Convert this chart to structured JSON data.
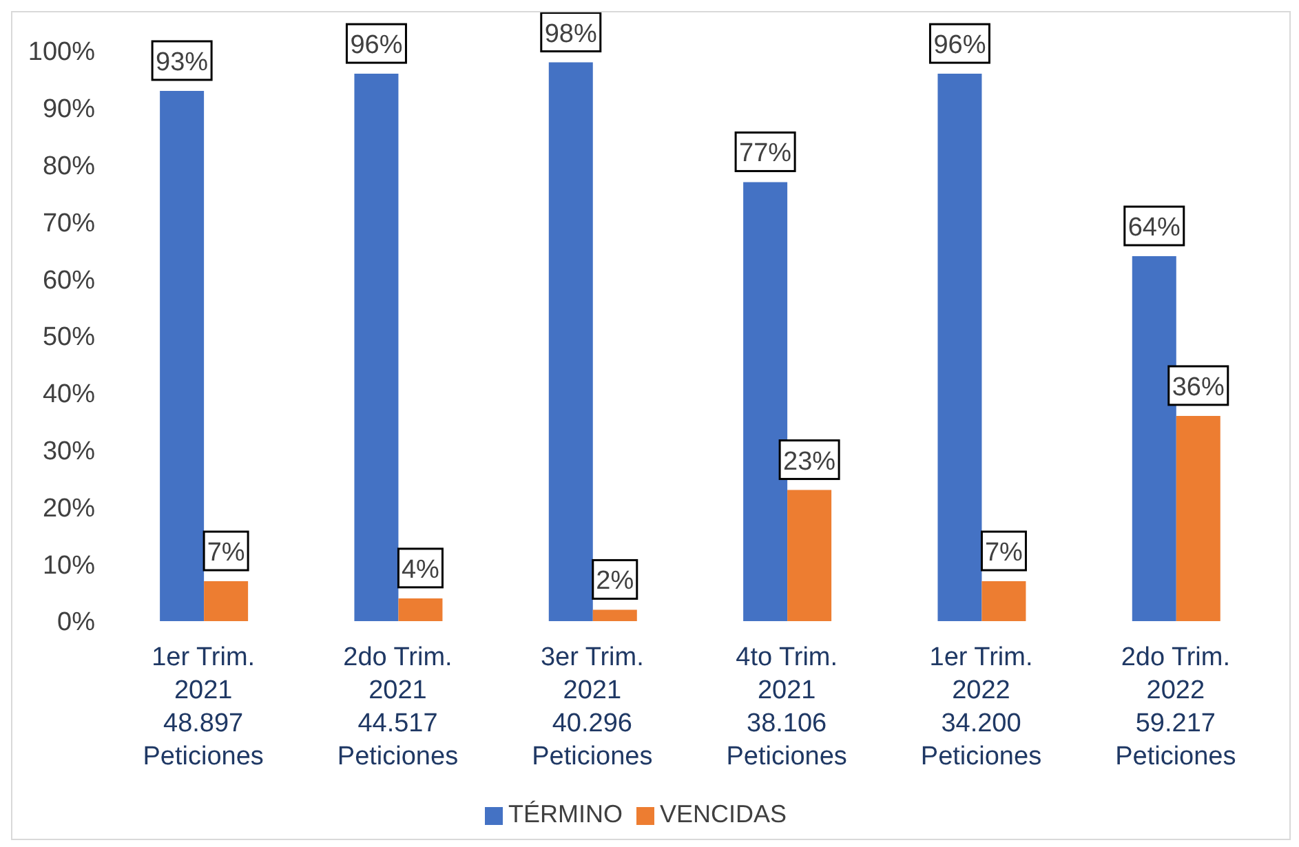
{
  "chart_data": {
    "type": "bar",
    "categories": [
      "1er Trim.\n2021\n48.897\nPeticiones",
      "2do Trim.\n2021\n44.517\nPeticiones",
      "3er Trim.\n2021\n40.296\nPeticiones",
      "4to Trim.\n2021\n38.106\nPeticiones",
      "1er Trim.\n2022\n34.200\nPeticiones",
      "2do Trim.\n2022\n59.217\nPeticiones"
    ],
    "series": [
      {
        "name": "TÉRMINO",
        "color": "#4472c4",
        "values": [
          93,
          96,
          98,
          77,
          96,
          64
        ],
        "value_labels": [
          "93%",
          "96%",
          "98%",
          "77%",
          "96%",
          "64%"
        ]
      },
      {
        "name": "VENCIDAS",
        "color": "#ed7d31",
        "values": [
          7,
          4,
          2,
          23,
          7,
          36
        ],
        "value_labels": [
          "7%",
          "4%",
          "2%",
          "23%",
          "7%",
          "36%"
        ]
      }
    ],
    "ylim": [
      0,
      100
    ],
    "yticks": [
      {
        "value": 0,
        "label": "0%"
      },
      {
        "value": 10,
        "label": "10%"
      },
      {
        "value": 20,
        "label": "20%"
      },
      {
        "value": 30,
        "label": "30%"
      },
      {
        "value": 40,
        "label": "40%"
      },
      {
        "value": 50,
        "label": "50%"
      },
      {
        "value": 60,
        "label": "60%"
      },
      {
        "value": 70,
        "label": "70%"
      },
      {
        "value": 80,
        "label": "80%"
      },
      {
        "value": 90,
        "label": "90%"
      },
      {
        "value": 100,
        "label": "100%"
      }
    ],
    "grid": false,
    "legend": "bottom"
  }
}
